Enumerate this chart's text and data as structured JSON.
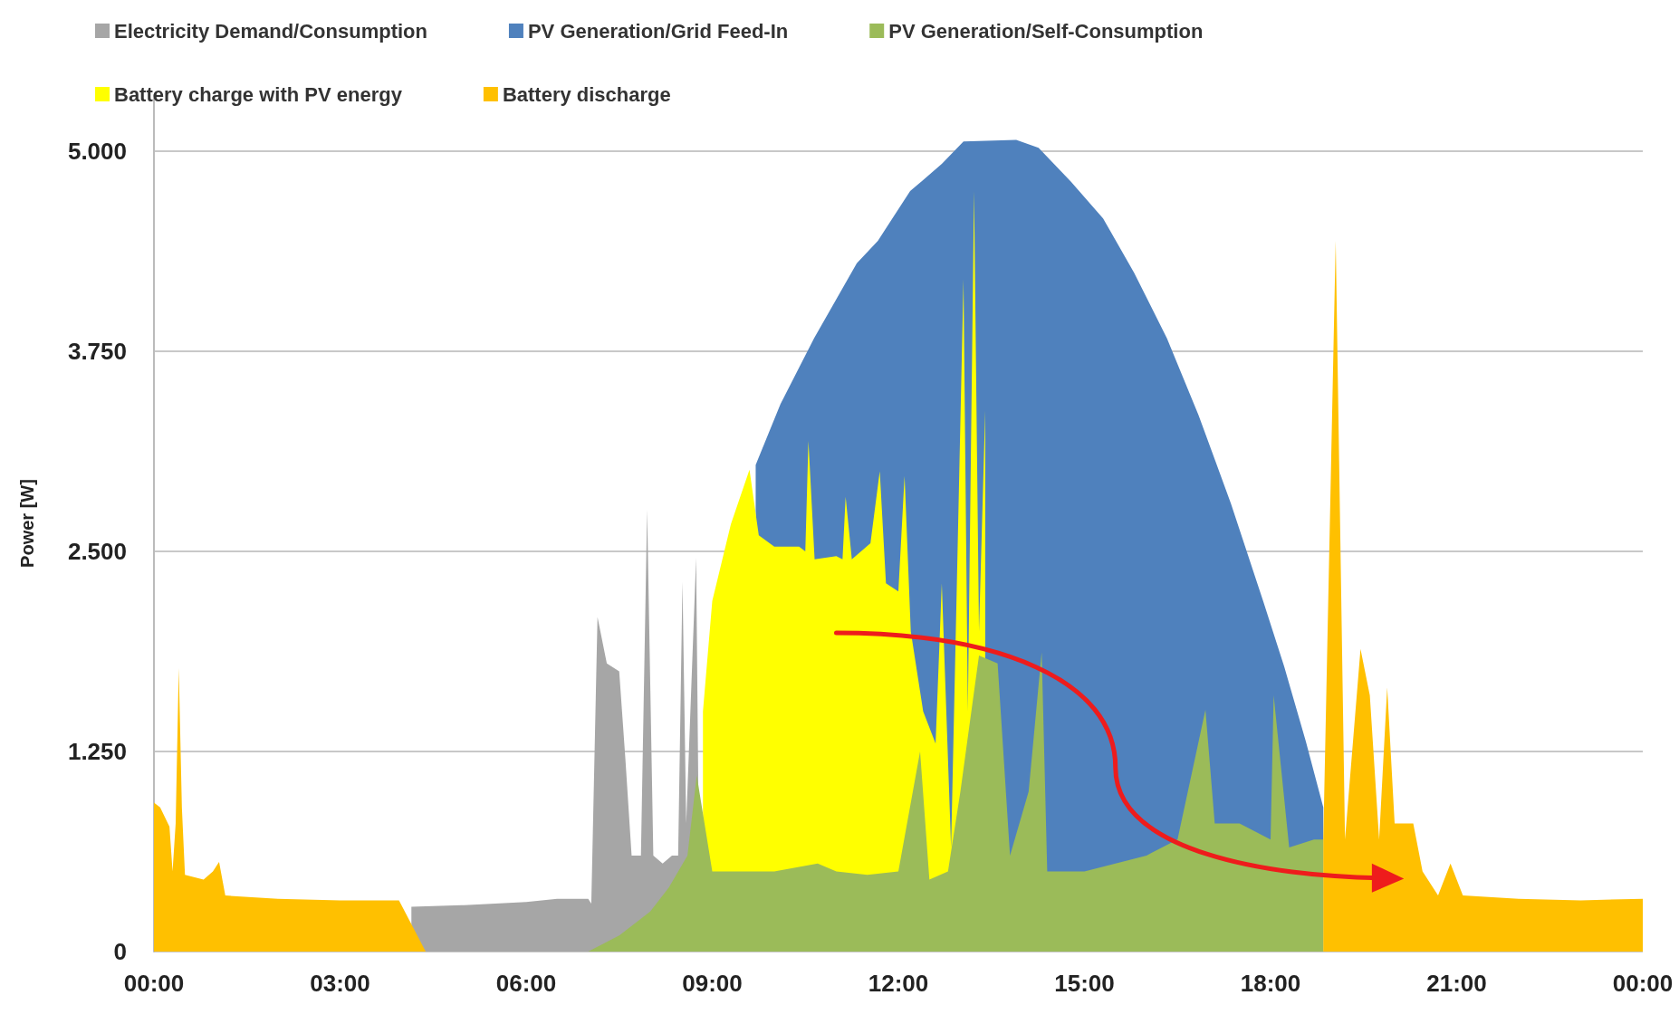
{
  "chart_data": {
    "type": "area",
    "ylabel": "Power [W]",
    "legend": "top",
    "grid": "y",
    "xlim": [
      0,
      24
    ],
    "xticks": [
      {
        "value": 0,
        "label": "00:00"
      },
      {
        "value": 3,
        "label": "03:00"
      },
      {
        "value": 6,
        "label": "06:00"
      },
      {
        "value": 9,
        "label": "09:00"
      },
      {
        "value": 12,
        "label": "12:00"
      },
      {
        "value": 15,
        "label": "15:00"
      },
      {
        "value": 18,
        "label": "18:00"
      },
      {
        "value": 21,
        "label": "21:00"
      },
      {
        "value": 24,
        "label": "00:00"
      }
    ],
    "ylim": [
      0,
      5350
    ],
    "yticks": [
      0,
      {
        "value": 1250,
        "label": "1.250"
      },
      {
        "value": 2500,
        "label": "2.500"
      },
      {
        "value": 3750,
        "label": "3.750"
      },
      {
        "value": 5000,
        "label": "5.000"
      }
    ],
    "series": [
      {
        "name": "Electricity Demand/Consumption",
        "color": "#a6a6a6",
        "x": [
          4.15,
          5,
          6,
          6.5,
          7.0,
          7.05,
          7.15,
          7.3,
          7.5,
          7.6,
          7.7,
          7.85,
          7.95,
          8.05,
          8.2,
          8.35,
          8.45,
          8.52,
          8.58,
          8.74,
          8.8
        ],
        "values": [
          280,
          290,
          310,
          330,
          330,
          300,
          2090,
          1800,
          1750,
          1200,
          600,
          600,
          2760,
          600,
          550,
          600,
          600,
          2310,
          800,
          2460,
          0
        ]
      },
      {
        "name": "PV Generation/Grid Feed-In",
        "color": "#4f81bd",
        "x": [
          9.7,
          10.1,
          10.64,
          11.33,
          11.67,
          12.19,
          12.7,
          13.05,
          13.9,
          14.26,
          14.78,
          15.3,
          15.8,
          16.33,
          16.84,
          17.36,
          17.88,
          18.22,
          18.57,
          18.85
        ],
        "values": [
          3040,
          3420,
          3830,
          4300,
          4440,
          4750,
          4920,
          5060,
          5070,
          5020,
          4810,
          4580,
          4240,
          3830,
          3350,
          2800,
          2190,
          1780,
          1310,
          900
        ]
      },
      {
        "name": "PV Generation/Self-Consumption",
        "color": "#9bbb59",
        "x": [
          7.0,
          7.5,
          8,
          8.3,
          8.6,
          8.75,
          9.0,
          9.5,
          10.0,
          10.7,
          11,
          11.5,
          12,
          12.35,
          12.5,
          12.8,
          13.0,
          13.3,
          13.6,
          13.8,
          14.1,
          14.31,
          14.4,
          15,
          15.5,
          16,
          16.5,
          16.95,
          17.1,
          17.5,
          18.0,
          18.05,
          18.3,
          18.7,
          18.85
        ],
        "values": [
          0,
          100,
          250,
          400,
          600,
          1100,
          500,
          500,
          500,
          550,
          500,
          480,
          500,
          1250,
          450,
          500,
          1000,
          1850,
          1800,
          600,
          1000,
          1870,
          500,
          500,
          550,
          600,
          700,
          1510,
          800,
          800,
          700,
          1600,
          650,
          700,
          700
        ]
      },
      {
        "name": "Battery charge with PV energy",
        "color": "#ffff00",
        "x": [
          8.85,
          9.0,
          9.3,
          9.6,
          9.75,
          10.0,
          10.4,
          10.5,
          10.55,
          10.65,
          11.0,
          11.1,
          11.15,
          11.25,
          11.55,
          11.7,
          11.8,
          12.0,
          12.1,
          12.2,
          12.4,
          12.6,
          12.7,
          12.85,
          13.05,
          13.12,
          13.22,
          13.3,
          13.4
        ],
        "values": [
          1500,
          2190,
          2670,
          3010,
          2600,
          2530,
          2530,
          2500,
          3190,
          2450,
          2470,
          2450,
          2840,
          2450,
          2550,
          3000,
          2300,
          2250,
          2970,
          2000,
          1500,
          1300,
          2300,
          650,
          4200,
          1500,
          4750,
          2000,
          3380
        ]
      },
      {
        "name": "Battery discharge",
        "color": "#ffc000",
        "x": [
          0,
          0.1,
          0.25,
          0.3,
          0.35,
          0.4,
          0.45,
          0.5,
          0.8,
          0.95,
          1.05,
          1.15,
          2,
          3,
          3.95,
          4.38,
          11,
          18.85,
          19.05,
          19.2,
          19.45,
          19.6,
          19.75,
          19.88,
          20.0,
          20.3,
          20.45,
          20.7,
          20.9,
          21.1,
          22,
          23,
          24
        ],
        "values": [
          930,
          900,
          780,
          500,
          800,
          1770,
          900,
          480,
          450,
          500,
          560,
          350,
          330,
          320,
          320,
          0,
          null,
          700,
          4440,
          700,
          1890,
          1600,
          700,
          1650,
          800,
          800,
          500,
          350,
          550,
          350,
          330,
          320,
          330
        ]
      }
    ]
  }
}
